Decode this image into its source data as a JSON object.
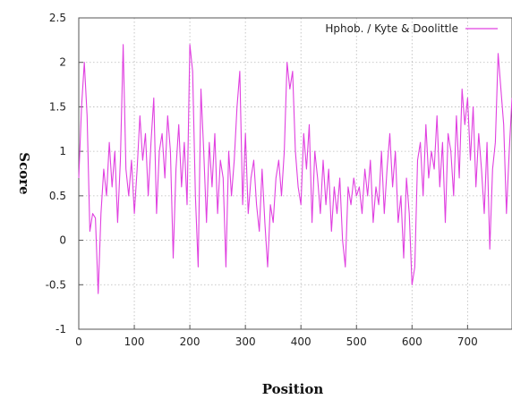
{
  "chart_data": {
    "type": "line",
    "title": "",
    "xlabel": "Position",
    "ylabel": "Score",
    "xlim": [
      0,
      780
    ],
    "ylim": [
      -1,
      2.5
    ],
    "x_ticks": [
      0,
      100,
      200,
      300,
      400,
      500,
      600,
      700
    ],
    "y_ticks": [
      -1,
      -0.5,
      0,
      0.5,
      1,
      1.5,
      2,
      2.5
    ],
    "y_tick_labels": [
      "-1",
      "-0.5",
      "0",
      "0.5",
      "1",
      "1.5",
      "2",
      "2.5"
    ],
    "grid": true,
    "legend_position": "top-right",
    "series": [
      {
        "name": "Hphob. / Kyte & Doolittle",
        "color": "#e040e0",
        "x": [
          0,
          5,
          10,
          15,
          20,
          25,
          30,
          35,
          40,
          45,
          50,
          55,
          60,
          65,
          70,
          75,
          80,
          85,
          90,
          95,
          100,
          105,
          110,
          115,
          120,
          125,
          130,
          135,
          140,
          145,
          150,
          155,
          160,
          165,
          170,
          175,
          180,
          185,
          190,
          195,
          200,
          205,
          210,
          215,
          220,
          225,
          230,
          235,
          240,
          245,
          250,
          255,
          260,
          265,
          270,
          275,
          280,
          285,
          290,
          295,
          300,
          305,
          310,
          315,
          320,
          325,
          330,
          335,
          340,
          345,
          350,
          355,
          360,
          365,
          370,
          375,
          380,
          385,
          390,
          395,
          400,
          405,
          410,
          415,
          420,
          425,
          430,
          435,
          440,
          445,
          450,
          455,
          460,
          465,
          470,
          475,
          480,
          485,
          490,
          495,
          500,
          505,
          510,
          515,
          520,
          525,
          530,
          535,
          540,
          545,
          550,
          555,
          560,
          565,
          570,
          575,
          580,
          585,
          590,
          595,
          600,
          605,
          610,
          615,
          620,
          625,
          630,
          635,
          640,
          645,
          650,
          655,
          660,
          665,
          670,
          675,
          680,
          685,
          690,
          695,
          700,
          705,
          710,
          715,
          720,
          725,
          730,
          735,
          740,
          745,
          750,
          755,
          760,
          765,
          770,
          775,
          780
        ],
        "values": [
          0.7,
          1.5,
          2.0,
          1.4,
          0.1,
          0.3,
          0.25,
          -0.6,
          0.3,
          0.8,
          0.5,
          1.1,
          0.6,
          1.0,
          0.2,
          0.9,
          2.2,
          0.8,
          0.5,
          0.9,
          0.3,
          0.8,
          1.4,
          0.9,
          1.2,
          0.5,
          1.1,
          1.6,
          0.3,
          1.0,
          1.2,
          0.7,
          1.4,
          1.0,
          -0.2,
          0.8,
          1.3,
          0.6,
          1.1,
          0.4,
          2.2,
          1.9,
          0.5,
          -0.3,
          1.7,
          1.0,
          0.2,
          1.1,
          0.6,
          1.2,
          0.3,
          0.9,
          0.7,
          -0.3,
          1.0,
          0.5,
          0.9,
          1.5,
          1.9,
          0.4,
          1.2,
          0.3,
          0.7,
          0.9,
          0.4,
          0.1,
          0.8,
          0.2,
          -0.3,
          0.4,
          0.2,
          0.7,
          0.9,
          0.5,
          1.0,
          2.0,
          1.7,
          1.9,
          1.0,
          0.6,
          0.4,
          1.2,
          0.8,
          1.3,
          0.2,
          1.0,
          0.7,
          0.3,
          0.9,
          0.4,
          0.8,
          0.1,
          0.6,
          0.3,
          0.7,
          0.0,
          -0.3,
          0.6,
          0.4,
          0.7,
          0.5,
          0.6,
          0.3,
          0.8,
          0.5,
          0.9,
          0.2,
          0.6,
          0.4,
          1.0,
          0.3,
          0.8,
          1.2,
          0.6,
          1.0,
          0.2,
          0.5,
          -0.2,
          0.7,
          0.3,
          -0.5,
          -0.3,
          0.9,
          1.1,
          0.5,
          1.3,
          0.7,
          1.0,
          0.8,
          1.4,
          0.6,
          1.1,
          0.2,
          1.2,
          1.0,
          0.5,
          1.4,
          0.7,
          1.7,
          1.3,
          1.6,
          0.9,
          1.5,
          0.6,
          1.2,
          0.8,
          0.3,
          1.1,
          -0.1,
          0.8,
          1.1,
          2.1,
          1.7,
          1.3,
          0.3,
          1.0,
          1.6
        ]
      }
    ]
  }
}
